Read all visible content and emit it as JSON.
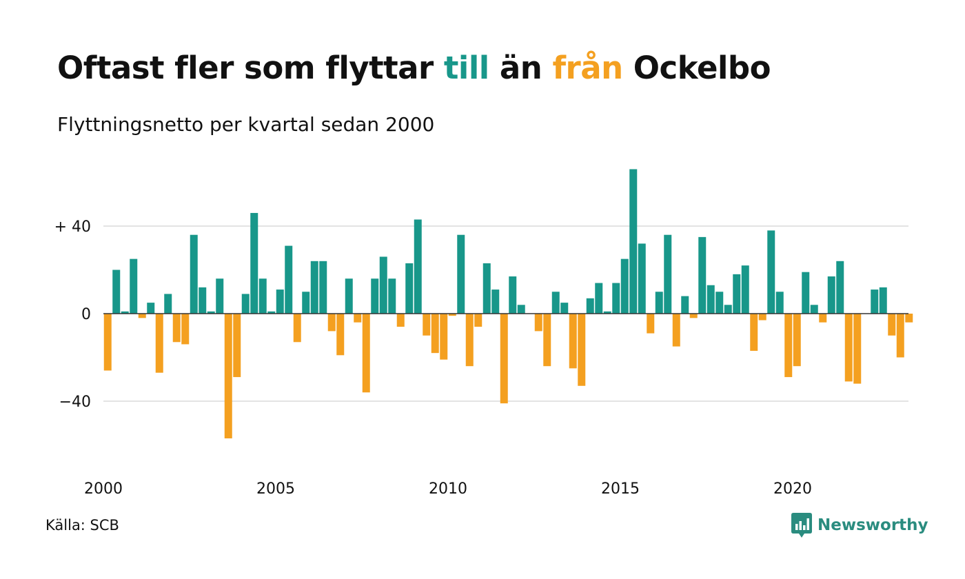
{
  "title": {
    "part1": "Oftast fler som flyttar ",
    "till": "till",
    "part2": " än ",
    "fran": "från",
    "part3": " Ockelbo"
  },
  "subtitle": "Flyttningsnetto per kvartal sedan 2000",
  "source": "Källa: SCB",
  "brand": {
    "name": "Newsworthy",
    "logo_icon": "newsworthy-logo-icon"
  },
  "colors": {
    "positive": "#18978a",
    "negative": "#f4a020",
    "grid": "#e3e3e3",
    "zero_line": "#333333",
    "brand": "#2a8c7f"
  },
  "chart_data": {
    "type": "bar",
    "title": "",
    "xlabel": "",
    "ylabel": "",
    "x_start": "2000 Q1",
    "x_ticks": [
      "2000",
      "2005",
      "2010",
      "2015",
      "2020"
    ],
    "y_ticks": [
      {
        "value": 40,
        "label": "+ 40"
      },
      {
        "value": 0,
        "label": "0"
      },
      {
        "value": -40,
        "label": "−40"
      }
    ],
    "ylim": [
      -60,
      68
    ],
    "grid": true,
    "legend": "none",
    "values": [
      -26,
      20,
      1,
      25,
      -2,
      5,
      -27,
      9,
      -13,
      -14,
      36,
      12,
      1,
      16,
      -57,
      -29,
      9,
      46,
      16,
      1,
      11,
      31,
      -13,
      10,
      24,
      24,
      -8,
      -19,
      16,
      -4,
      -36,
      16,
      26,
      16,
      -6,
      23,
      43,
      -10,
      -18,
      -21,
      -1,
      36,
      -24,
      -6,
      23,
      11,
      -41,
      17,
      4,
      0,
      -8,
      -24,
      10,
      5,
      -25,
      -33,
      7,
      14,
      1,
      14,
      25,
      66,
      32,
      -9,
      10,
      36,
      -15,
      8,
      -2,
      35,
      13,
      10,
      4,
      18,
      22,
      -17,
      -3,
      38,
      10,
      -29,
      -24,
      19,
      4,
      -4,
      17,
      24,
      -31,
      -32,
      0,
      11,
      12,
      -10,
      -20,
      -4
    ]
  }
}
